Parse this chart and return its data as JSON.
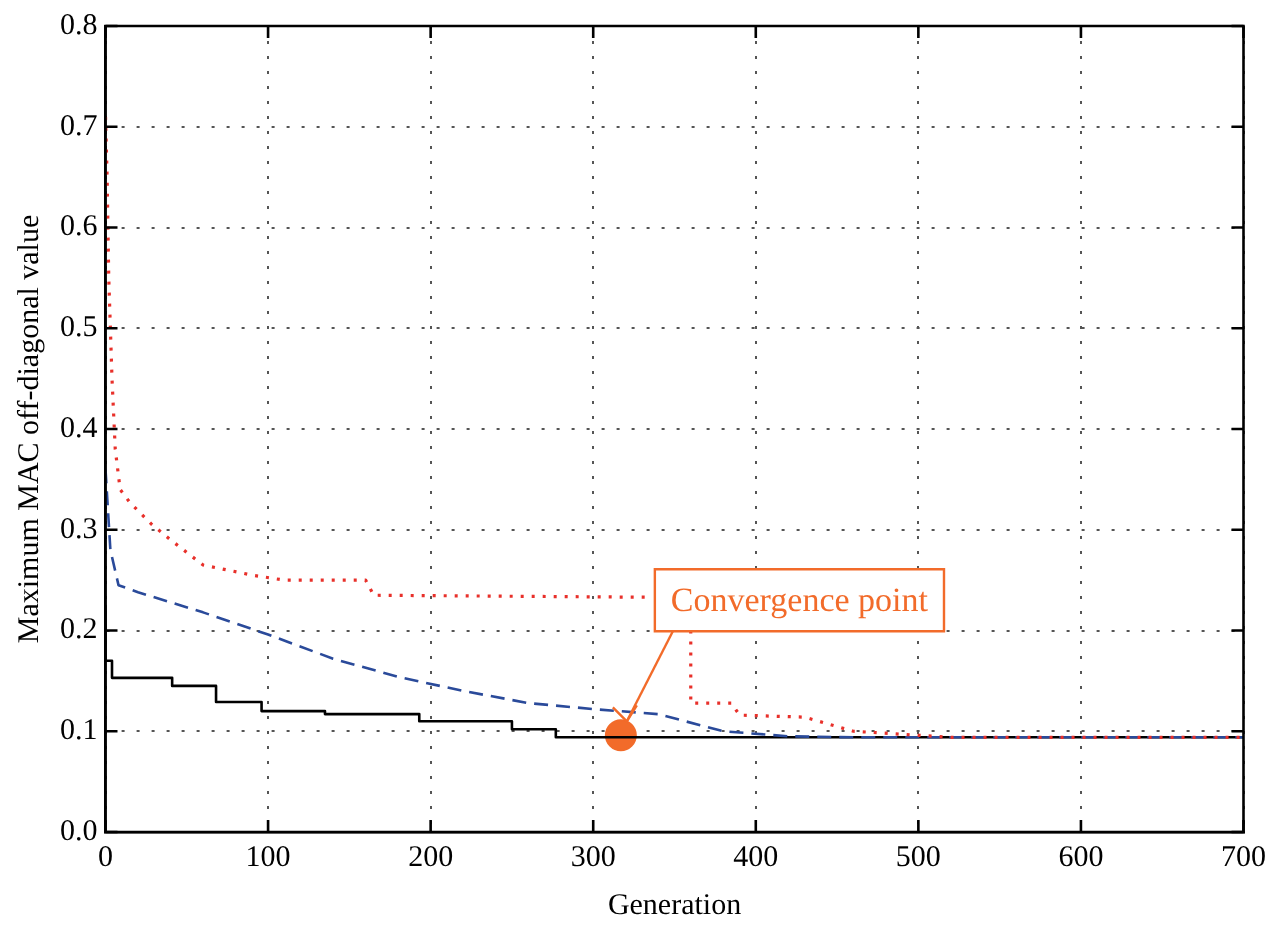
{
  "chart_data": {
    "type": "line",
    "xlabel": "Generation",
    "ylabel": "Maximum MAC off-diagonal value",
    "xlim": [
      0,
      700
    ],
    "xticks": [
      0,
      100,
      200,
      300,
      400,
      500,
      600,
      700
    ],
    "ylim": [
      0,
      0.8
    ],
    "yticks": [
      {
        "value": 0,
        "label": "0.0"
      },
      0.1,
      0.2,
      0.3,
      0.4,
      0.5,
      0.6,
      0.7,
      0.8
    ],
    "grid": true,
    "legend": false,
    "marker": "none",
    "series": [
      {
        "line_style": "dotted",
        "color": "#e8302a",
        "x": [
          0,
          1,
          2,
          4,
          6,
          9,
          15,
          28,
          40,
          60,
          90,
          110,
          160,
          165,
          335,
          348,
          360,
          360,
          385,
          390,
          430,
          460,
          500,
          520,
          700
        ],
        "values": [
          0.71,
          0.65,
          0.55,
          0.45,
          0.38,
          0.34,
          0.327,
          0.306,
          0.29,
          0.265,
          0.255,
          0.25,
          0.25,
          0.235,
          0.233,
          null,
          0.2,
          0.128,
          0.128,
          0.116,
          0.114,
          0.1,
          0.096,
          0.094,
          0.094
        ]
      },
      {
        "line_style": "dashed",
        "color": "#2a4a9a",
        "x": [
          0,
          3,
          8,
          20,
          40,
          60,
          80,
          100,
          140,
          180,
          220,
          260,
          300,
          340,
          380,
          420,
          460,
          500,
          700
        ],
        "values": [
          0.36,
          0.28,
          0.245,
          0.238,
          0.228,
          0.218,
          0.207,
          0.196,
          0.172,
          0.154,
          0.14,
          0.128,
          0.122,
          0.117,
          0.1,
          0.095,
          0.094,
          0.094,
          0.094
        ]
      },
      {
        "type": "step",
        "line_style": "solid",
        "color": "#000000",
        "x": [
          0,
          4,
          41,
          68,
          96,
          135,
          193,
          250,
          277,
          330,
          700
        ],
        "values": [
          0.225,
          0.17,
          0.153,
          0.145,
          0.129,
          0.12,
          0.117,
          0.11,
          0.102,
          0.094,
          0.094
        ]
      },
      {
        "type": "scatter",
        "marker": "circle",
        "color": "#f26b2a",
        "x": [
          317
        ],
        "values": [
          0.096
        ]
      }
    ],
    "annotations": [
      {
        "text": "Convergence point",
        "x": 317,
        "y": 0.096
      }
    ]
  }
}
